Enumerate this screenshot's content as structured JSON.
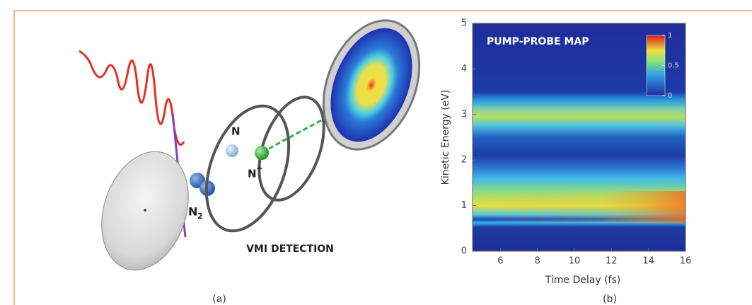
{
  "panel_a": {
    "label_n": "N",
    "label_n_ion": "N",
    "ion_charge": "+",
    "label_n2": "N",
    "n2_subscript": "2",
    "detection": "VMI DETECTION",
    "caption": "(a)"
  },
  "panel_b": {
    "title": "PUMP-PROBE MAP",
    "x_label": "Time Delay (fs)",
    "y_label": "Kinetic Energy (eV)",
    "caption": "(b)",
    "xlim": [
      4.5,
      16
    ],
    "xticks": [
      6,
      8,
      10,
      12,
      14,
      16
    ],
    "ylim": [
      0,
      5
    ],
    "yticks": [
      0,
      1,
      2,
      3,
      4,
      5
    ],
    "colorbar_lim": [
      0,
      1
    ],
    "colorbar_ticks": [
      0,
      0.5,
      1
    ]
  }
}
